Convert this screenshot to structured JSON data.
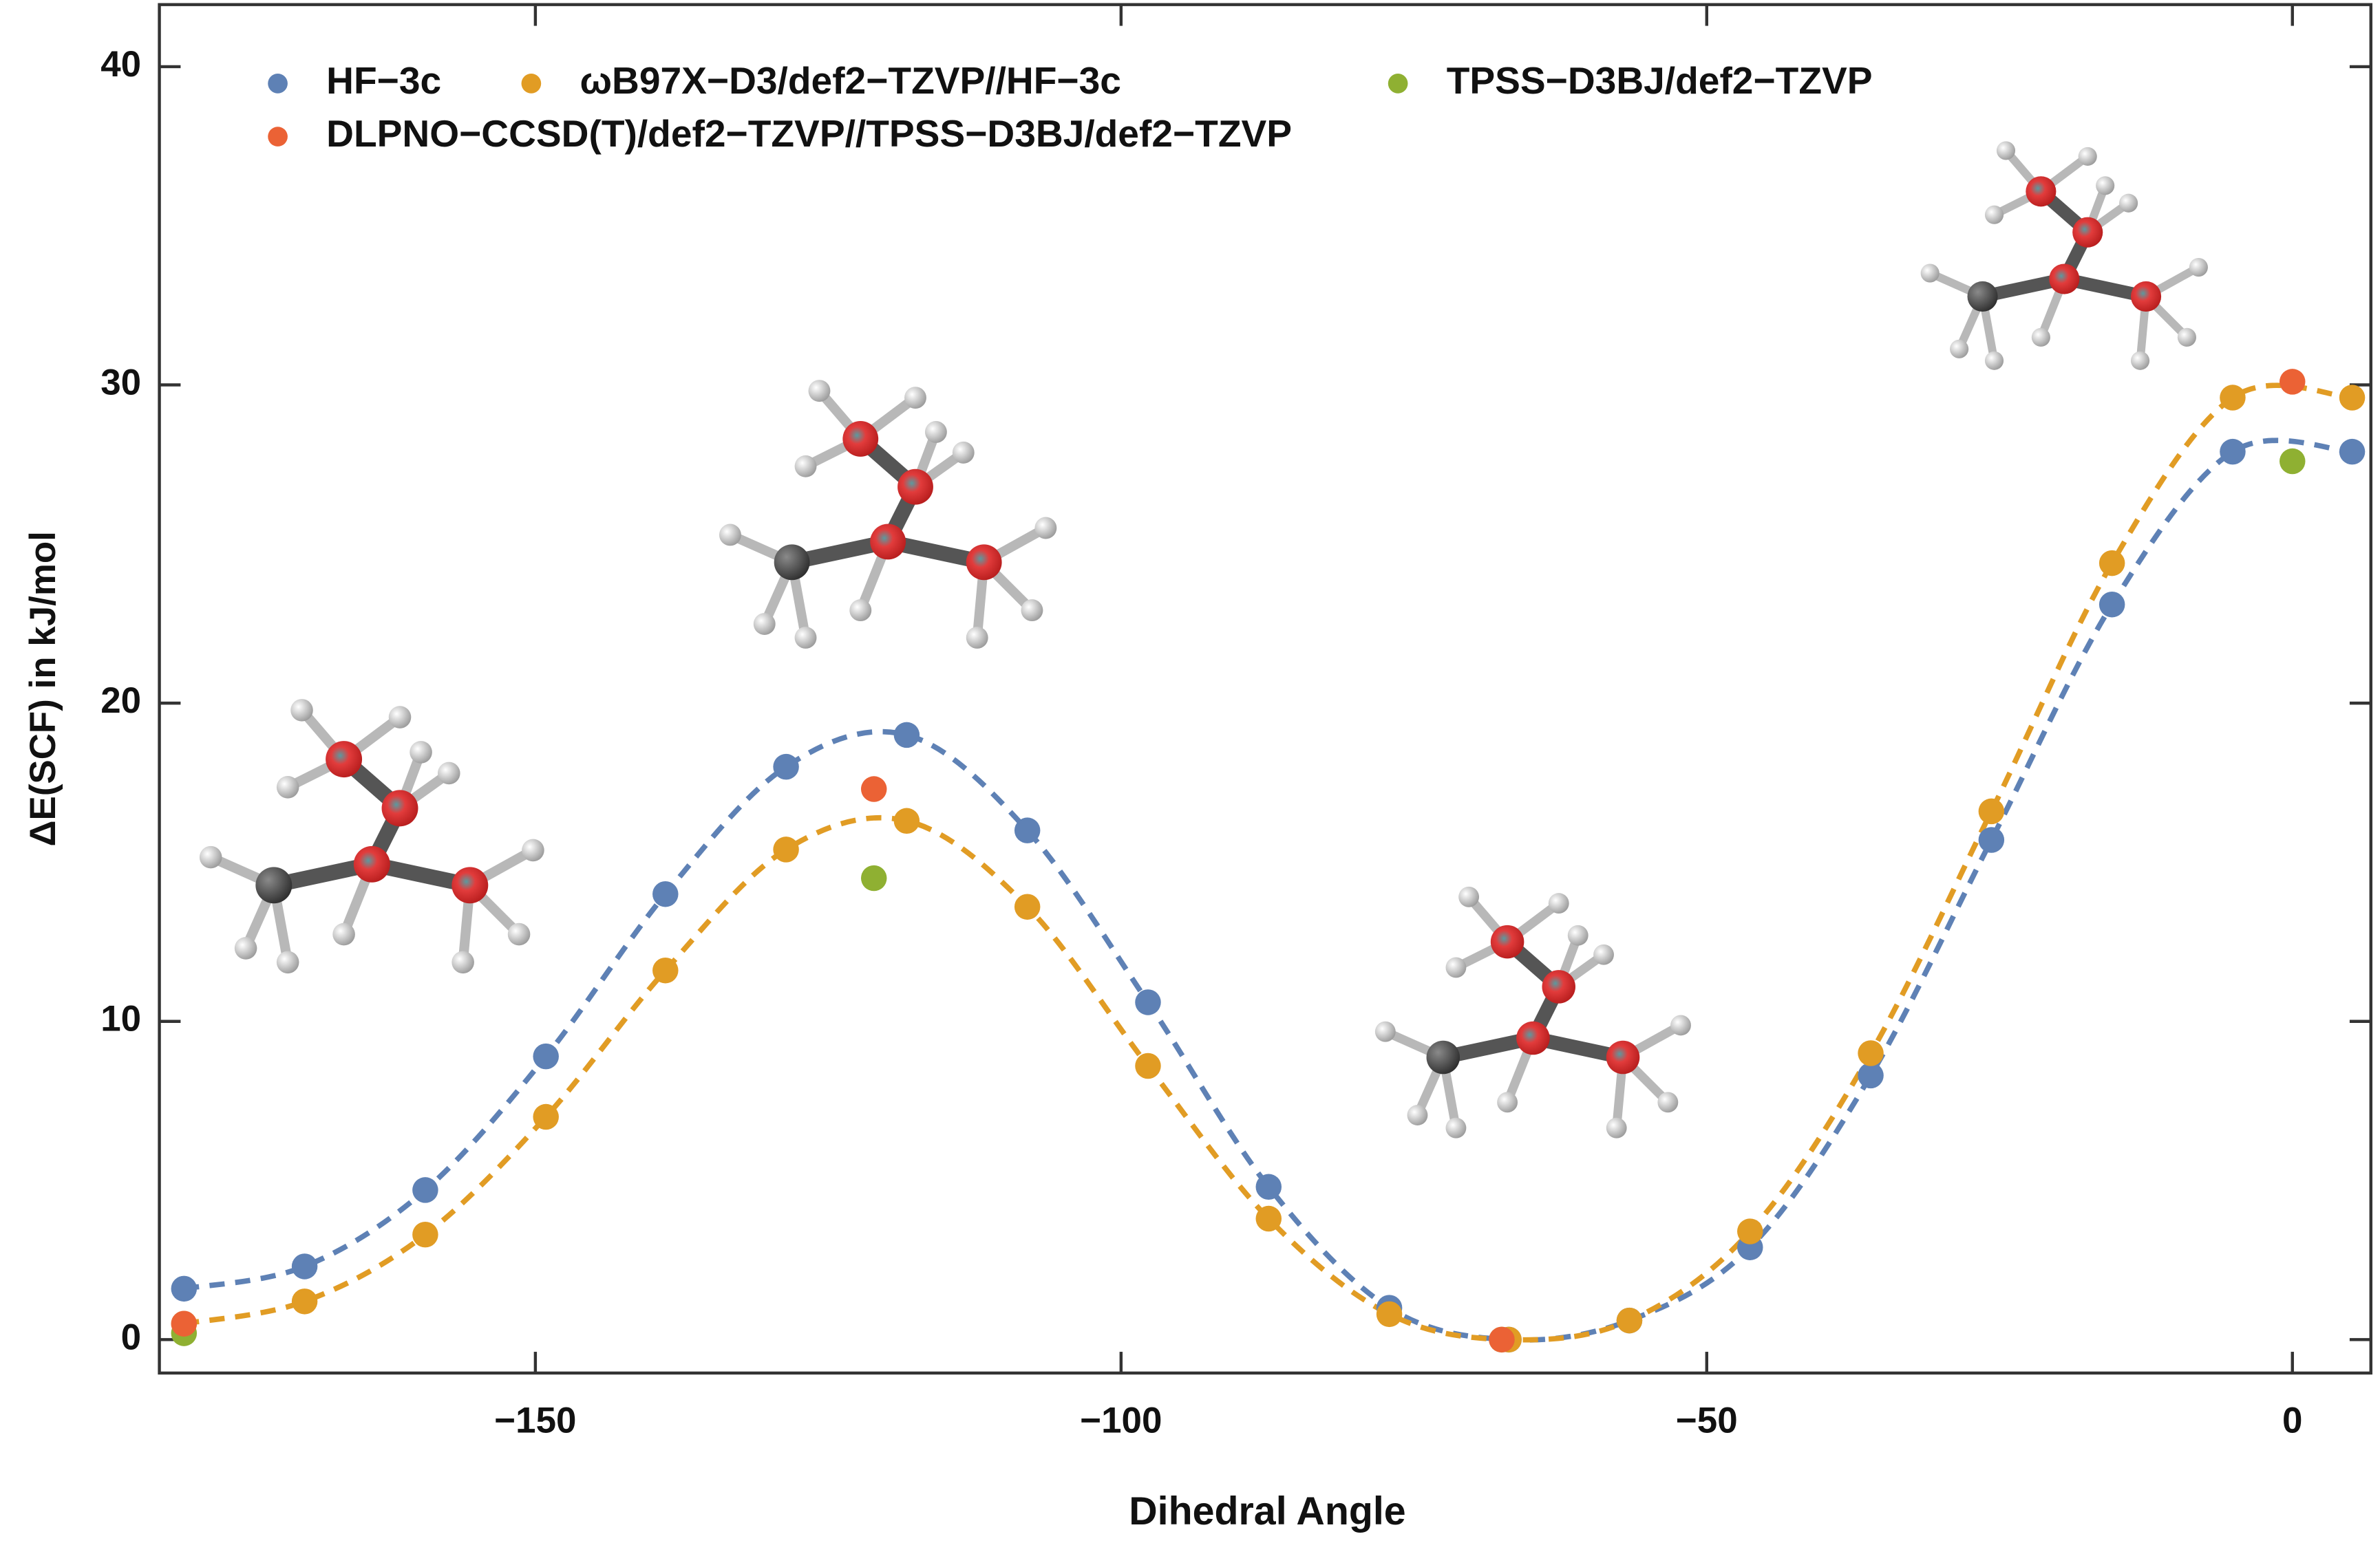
{
  "chart_data": {
    "type": "scatter",
    "x_label": "Dihedral Angle",
    "y_label": "ΔE(SCF) in kJ/mol",
    "xlim": [
      -182.1,
      6.7
    ],
    "ylim": [
      -1.05,
      41.95
    ],
    "xticks": [
      {
        "value": -150,
        "label": "−150"
      },
      {
        "value": -100,
        "label": "−100"
      },
      {
        "value": -50,
        "label": "−50"
      },
      0
    ],
    "yticks": [
      0,
      10,
      20,
      30,
      40
    ],
    "legend": "top-left",
    "series": [
      {
        "name": "HF−3c",
        "color": "#5e81b5",
        "line_style": "dashed",
        "x": [
          -180,
          -169.7,
          -159.4,
          -149.1,
          -138.9,
          -128.6,
          -118.3,
          -108.0,
          -97.7,
          -87.4,
          -77.1,
          -66.9,
          -56.6,
          -46.3,
          -36.0,
          -25.7,
          -15.4,
          -5.1,
          5.1
        ],
        "values": [
          1.6,
          2.3,
          4.7,
          8.9,
          14.0,
          18.0,
          19.0,
          16.0,
          10.6,
          4.8,
          1.0,
          0,
          0.6,
          2.9,
          8.3,
          15.7,
          23.1,
          27.9,
          27.9
        ]
      },
      {
        "name": "ωB97X−D3/def2−TZVP//HF−3c",
        "color": "#e19c24",
        "line_style": "dashed",
        "x": [
          -180,
          -169.7,
          -159.4,
          -149.1,
          -138.9,
          -128.6,
          -118.3,
          -108.0,
          -97.7,
          -87.4,
          -77.1,
          -66.9,
          -56.6,
          -46.3,
          -36.0,
          -25.7,
          -15.4,
          -5.1,
          5.1
        ],
        "values": [
          0.5,
          1.2,
          3.3,
          7.0,
          11.6,
          15.4,
          16.3,
          13.6,
          8.6,
          3.8,
          0.8,
          0,
          0.6,
          3.4,
          9.0,
          16.6,
          24.4,
          29.6,
          29.6
        ]
      },
      {
        "name": "TPSS−D3BJ/def2−TZVP",
        "color": "#8fb032",
        "x": [
          -180,
          -121.1,
          -67.5,
          0
        ],
        "values": [
          0.2,
          14.5,
          0,
          27.6
        ]
      },
      {
        "name": "DLPNO−CCSD(T)/def2−TZVP//TPSS−D3BJ/def2−TZVP",
        "color": "#eb6235",
        "x": [
          -180,
          -121.1,
          -67.5,
          0
        ],
        "values": [
          0.5,
          17.3,
          0,
          30.1
        ]
      }
    ]
  }
}
